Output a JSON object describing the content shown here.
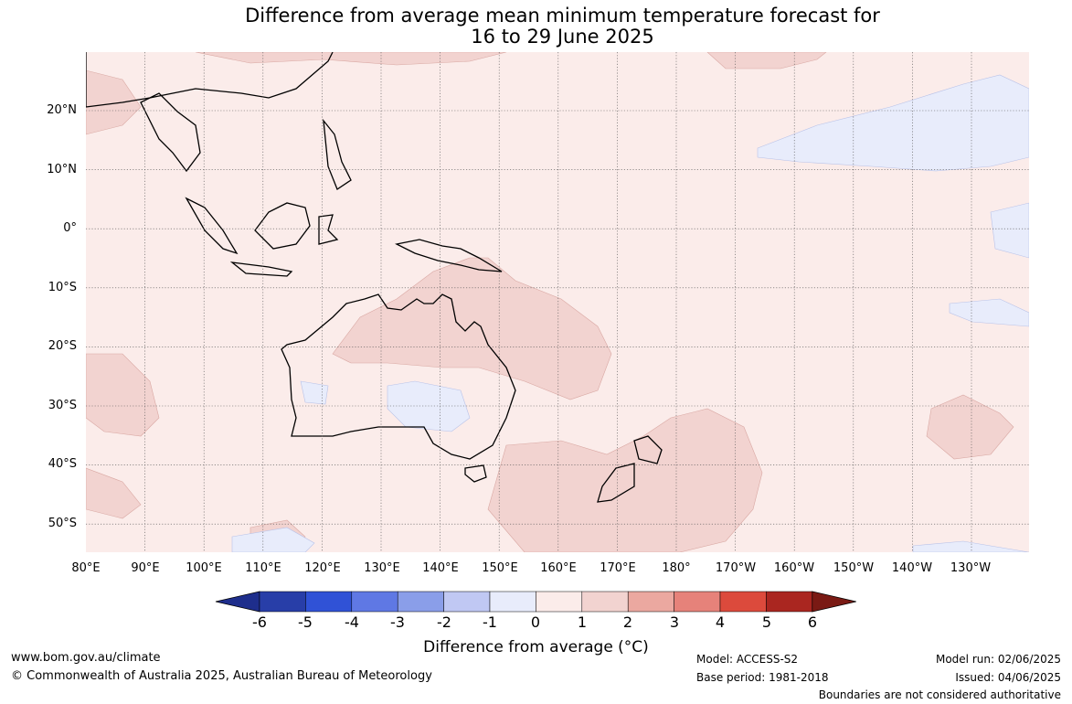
{
  "title": {
    "line1": "Difference from average mean minimum temperature forecast for",
    "line2": "16 to 29 June 2025"
  },
  "map": {
    "lon_labels": [
      "80°E",
      "90°E",
      "100°E",
      "110°E",
      "120°E",
      "130°E",
      "140°E",
      "150°E",
      "160°E",
      "170°E",
      "180°",
      "170°W",
      "160°W",
      "150°W",
      "140°W",
      "130°W"
    ],
    "lat_labels": [
      "20°N",
      "10°N",
      "0°",
      "10°S",
      "20°S",
      "30°S",
      "40°S",
      "50°S"
    ],
    "base_color": "#fbecea",
    "regions": [
      {
        "label": "Central and western Australia",
        "value_range": "1 to 2"
      },
      {
        "label": "Tasman Sea east of Australia",
        "value_range": "1 to 2"
      },
      {
        "label": "Southern Australia interior",
        "value_range": "-1 to 0"
      },
      {
        "label": "North Pacific near Hawaii",
        "value_range": "-1 to 0"
      }
    ]
  },
  "colorbar": {
    "ticks": [
      "-6",
      "-5",
      "-4",
      "-3",
      "-2",
      "-1",
      "0",
      "1",
      "2",
      "3",
      "4",
      "5",
      "6"
    ],
    "colors": [
      "#1e2e8c",
      "#283ea8",
      "#3052d6",
      "#5f78e4",
      "#8a9ee9",
      "#c0c8f3",
      "#e8ecfb",
      "#fbecea",
      "#f2d3d0",
      "#eba8a0",
      "#e6827a",
      "#dc4a3c",
      "#aa2620",
      "#7a1a14"
    ],
    "label": "Difference from average (°C)"
  },
  "footer": {
    "website": "www.bom.gov.au/climate",
    "copyright": "© Commonwealth of Australia 2025, Australian Bureau of Meteorology",
    "model": "Model: ACCESS-S2",
    "base_period": "Base period: 1981-2018",
    "model_run": "Model run: 02/06/2025",
    "issued": "Issued: 04/06/2025",
    "disclaimer": "Boundaries are not considered authoritative"
  }
}
